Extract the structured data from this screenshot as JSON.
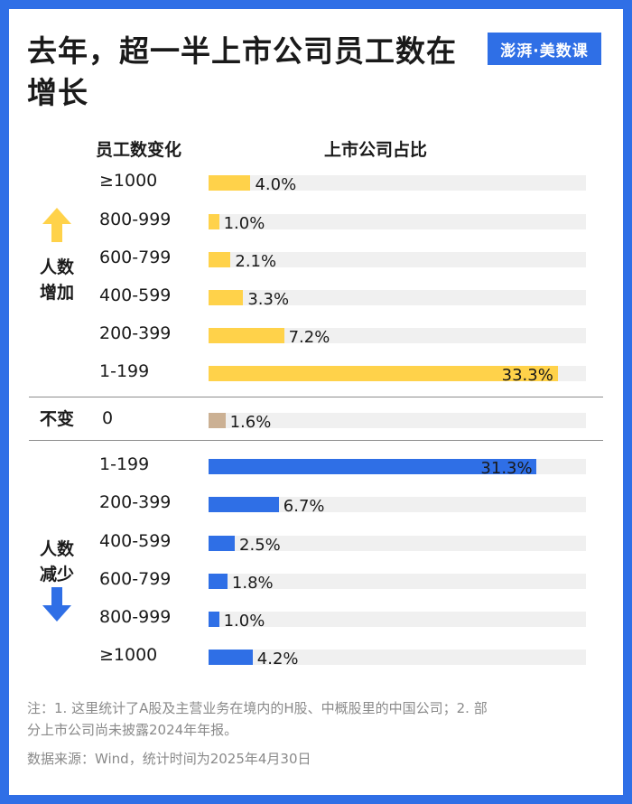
{
  "header": {
    "title": "去年，超一半上市公司员工数在增长",
    "logo_text": "澎湃·美数课"
  },
  "chart_data": {
    "type": "bar",
    "orientation": "horizontal",
    "xlim": [
      0,
      36
    ],
    "column_headers": {
      "category": "员工数变化",
      "value": "上市公司占比"
    },
    "groups": [
      {
        "label": "人数增加",
        "color": "#ffd24a",
        "rows": [
          {
            "category": "≥1000",
            "value": 4.0,
            "label": "4.0%"
          },
          {
            "category": "800-999",
            "value": 1.0,
            "label": "1.0%"
          },
          {
            "category": "600-799",
            "value": 2.1,
            "label": "2.1%"
          },
          {
            "category": "400-599",
            "value": 3.3,
            "label": "3.3%"
          },
          {
            "category": "200-399",
            "value": 7.2,
            "label": "7.2%"
          },
          {
            "category": "1-199",
            "value": 33.3,
            "label": "33.3%"
          }
        ]
      },
      {
        "label": "不变",
        "color": "#cbb093",
        "rows": [
          {
            "category": "0",
            "value": 1.6,
            "label": "1.6%"
          }
        ]
      },
      {
        "label": "人数减少",
        "color": "#2f6fe6",
        "rows": [
          {
            "category": "1-199",
            "value": 31.3,
            "label": "31.3%"
          },
          {
            "category": "200-399",
            "value": 6.7,
            "label": "6.7%"
          },
          {
            "category": "400-599",
            "value": 2.5,
            "label": "2.5%"
          },
          {
            "category": "600-799",
            "value": 1.8,
            "label": "1.8%"
          },
          {
            "category": "800-999",
            "value": 1.0,
            "label": "1.0%"
          },
          {
            "category": "≥1000",
            "value": 4.2,
            "label": "4.2%"
          }
        ]
      }
    ]
  },
  "footer": {
    "note_line1": "注：1. 这里统计了A股及主营业务在境内的H股、中概股里的中国公司；2. 部",
    "note_line2": "分上市公司尚未披露2024年年报。",
    "source": "数据来源：Wind，统计时间为2025年4月30日"
  },
  "icons": {
    "up": "arrow-up-icon",
    "down": "arrow-down-icon"
  }
}
